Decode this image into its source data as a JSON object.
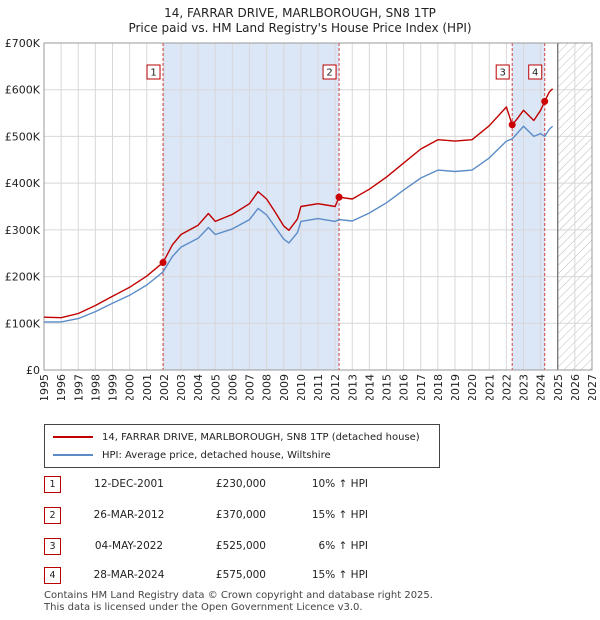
{
  "title": "14, FARRAR DRIVE, MARLBOROUGH, SN8 1TP",
  "subtitle": "Price paid vs. HM Land Registry's House Price Index (HPI)",
  "colors": {
    "property": "#c00000",
    "hpi": "#5b8cc8",
    "shade": "#dbe6f7",
    "accent": "#cc0000"
  },
  "chart_data": {
    "type": "line",
    "xlim": [
      1995,
      2027
    ],
    "ylim": [
      0,
      700000
    ],
    "y_ticks": [
      {
        "v": 0,
        "label": "£0"
      },
      {
        "v": 100000,
        "label": "£100K"
      },
      {
        "v": 200000,
        "label": "£200K"
      },
      {
        "v": 300000,
        "label": "£300K"
      },
      {
        "v": 400000,
        "label": "£400K"
      },
      {
        "v": 500000,
        "label": "£500K"
      },
      {
        "v": 600000,
        "label": "£600K"
      },
      {
        "v": 700000,
        "label": "£700K"
      }
    ],
    "x_ticks": [
      "1995",
      "1996",
      "1997",
      "1998",
      "1999",
      "2000",
      "2001",
      "2002",
      "2003",
      "2004",
      "2005",
      "2006",
      "2007",
      "2008",
      "2009",
      "2010",
      "2011",
      "2012",
      "2013",
      "2014",
      "2015",
      "2016",
      "2017",
      "2018",
      "2019",
      "2020",
      "2021",
      "2022",
      "2023",
      "2024",
      "2025",
      "2026",
      "2027"
    ],
    "forecast_start": 2025.0,
    "shaded_ranges": [
      [
        2001.95,
        2012.23
      ],
      [
        2022.34,
        2024.24
      ]
    ],
    "series": [
      {
        "name": "14, FARRAR DRIVE, MARLBOROUGH, SN8 1TP (detached house)",
        "x": [
          1995,
          1996,
          1997,
          1998,
          1999,
          2000,
          2001,
          2001.95,
          2002.5,
          2003,
          2004,
          2004.6,
          2005,
          2006,
          2007,
          2007.5,
          2008,
          2008.5,
          2009,
          2009.3,
          2009.8,
          2010,
          2011,
          2012,
          2012.23,
          2013,
          2014,
          2015,
          2016,
          2017,
          2018,
          2019,
          2020,
          2021,
          2022,
          2022.34,
          2022.6,
          2023,
          2023.6,
          2024,
          2024.24,
          2024.5,
          2024.7
        ],
        "y": [
          113000,
          112000,
          121000,
          138000,
          158000,
          177000,
          201000,
          230000,
          268000,
          290000,
          310000,
          335000,
          318000,
          333000,
          356000,
          382000,
          366000,
          338000,
          308000,
          299000,
          323000,
          350000,
          356000,
          350000,
          370000,
          366000,
          387000,
          413000,
          443000,
          473000,
          493000,
          490000,
          493000,
          523000,
          563000,
          525000,
          536000,
          556000,
          534000,
          556000,
          575000,
          595000,
          602000
        ]
      },
      {
        "name": "HPI: Average price, detached house, Wiltshire",
        "x": [
          1995,
          1996,
          1997,
          1998,
          1999,
          2000,
          2001,
          2001.95,
          2002.5,
          2003,
          2004,
          2004.6,
          2005,
          2006,
          2007,
          2007.5,
          2008,
          2008.5,
          2009,
          2009.3,
          2009.8,
          2010,
          2011,
          2012,
          2012.23,
          2013,
          2014,
          2015,
          2016,
          2017,
          2018,
          2019,
          2020,
          2021,
          2022,
          2022.34,
          2022.6,
          2023,
          2023.6,
          2024,
          2024.24,
          2024.5,
          2024.7
        ],
        "y": [
          103000,
          103000,
          110000,
          125000,
          143000,
          160000,
          182000,
          210000,
          243000,
          263000,
          282000,
          305000,
          290000,
          302000,
          322000,
          346000,
          332000,
          306000,
          280000,
          272000,
          294000,
          318000,
          324000,
          318000,
          322000,
          319000,
          336000,
          358000,
          385000,
          411000,
          428000,
          425000,
          428000,
          454000,
          490000,
          495000,
          505000,
          522000,
          500000,
          506000,
          500000,
          515000,
          522000
        ]
      }
    ],
    "sales": [
      {
        "label": "1",
        "x": 2001.95,
        "y": 230000
      },
      {
        "label": "2",
        "x": 2012.23,
        "y": 370000
      },
      {
        "label": "3",
        "x": 2022.34,
        "y": 525000
      },
      {
        "label": "4",
        "x": 2024.24,
        "y": 575000
      }
    ]
  },
  "legend": {
    "property": "14, FARRAR DRIVE, MARLBOROUGH, SN8 1TP (detached house)",
    "hpi": "HPI: Average price, detached house, Wiltshire"
  },
  "transactions": [
    {
      "num": "1",
      "date": "12-DEC-2001",
      "price": "£230,000",
      "hpi": "10% ↑ HPI"
    },
    {
      "num": "2",
      "date": "26-MAR-2012",
      "price": "£370,000",
      "hpi": "15% ↑ HPI"
    },
    {
      "num": "3",
      "date": "04-MAY-2022",
      "price": "£525,000",
      "hpi": "6% ↑ HPI"
    },
    {
      "num": "4",
      "date": "28-MAR-2024",
      "price": "£575,000",
      "hpi": "15% ↑ HPI"
    }
  ],
  "footer": {
    "line1": "Contains HM Land Registry data © Crown copyright and database right 2025.",
    "line2": "This data is licensed under the Open Government Licence v3.0."
  }
}
